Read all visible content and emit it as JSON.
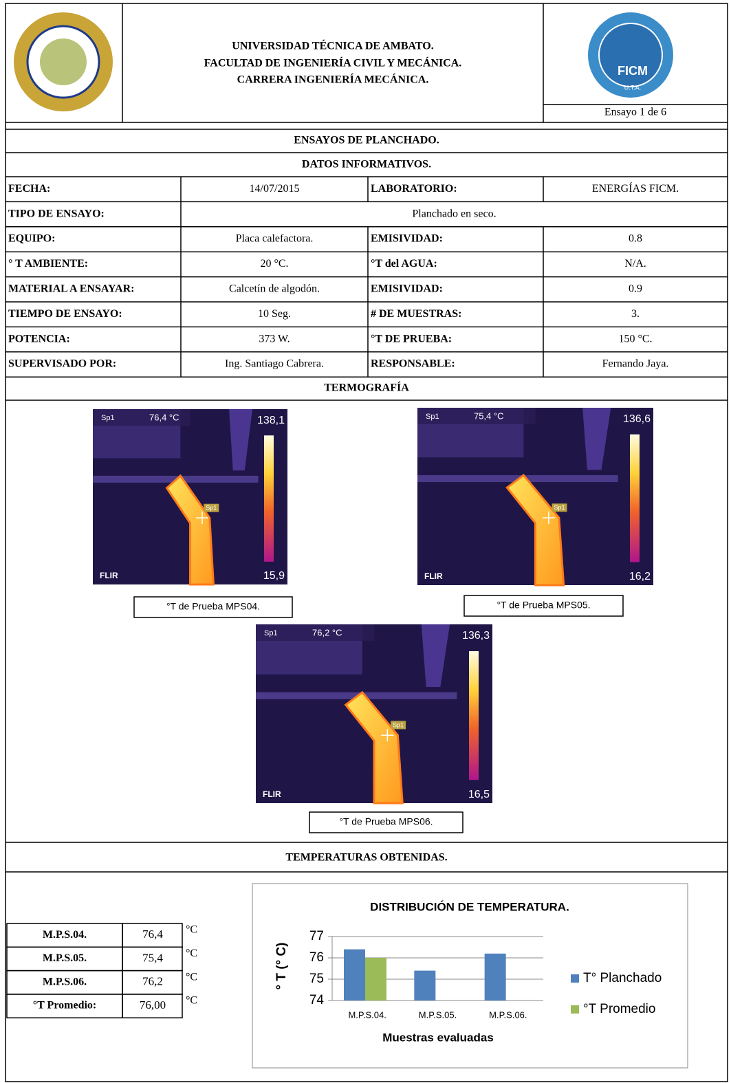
{
  "header": {
    "university": "UNIVERSIDAD TÉCNICA DE AMBATO.",
    "faculty": "FACULTAD DE INGENIERÍA CIVIL Y MECÁNICA.",
    "career": "CARRERA INGENIERÍA MECÁNICA.",
    "test_number": "Ensayo 1 de 6",
    "logo_right_text": "FICM",
    "logo_right_sub": "U.T.A."
  },
  "title": "ENSAYOS DE PLANCHADO.",
  "info_title": "DATOS INFORMATIVOS.",
  "info_rows": [
    [
      "FECHA:",
      "14/07/2015",
      "LABORATORIO:",
      "ENERGÍAS FICM."
    ],
    [
      "TIPO DE ENSAYO:",
      "Planchado en seco."
    ],
    [
      "EQUIPO:",
      "Placa calefactora.",
      "EMISIVIDAD:",
      "0.8"
    ],
    [
      "° T AMBIENTE:",
      "20 °C.",
      "°T del AGUA:",
      "N/A."
    ],
    [
      "MATERIAL A ENSAYAR:",
      "Calcetín de algodón.",
      "EMISIVIDAD:",
      "0.9"
    ],
    [
      "TIEMPO DE ENSAYO:",
      "10 Seg.",
      "# DE MUESTRAS:",
      "3."
    ],
    [
      "POTENCIA:",
      "373 W.",
      "°T DE PRUEBA:",
      "150 °C."
    ],
    [
      "SUPERVISADO POR:",
      "Ing.  Santiago Cabrera.",
      "RESPONSABLE:",
      "Fernando Jaya."
    ]
  ],
  "thermography": {
    "title": "TERMOGRAFÍA",
    "images": [
      {
        "spot": "Sp1",
        "reading": "76,4 °C",
        "max": "138,1",
        "min": "15,9",
        "brand": "FLIR",
        "caption": "°T de Prueba MPS04."
      },
      {
        "spot": "Sp1",
        "reading": "75,4 °C",
        "max": "136,6",
        "min": "16,2",
        "brand": "FLIR",
        "caption": "°T de Prueba MPS05."
      },
      {
        "spot": "Sp1",
        "reading": "76,2 °C",
        "max": "136,3",
        "min": "16,5",
        "brand": "FLIR",
        "caption": "°T de Prueba MPS06."
      }
    ]
  },
  "results": {
    "title": "TEMPERATURAS OBTENIDAS.",
    "rows": [
      {
        "label": "M.P.S.04.",
        "value": "76,4",
        "unit": "°C"
      },
      {
        "label": "M.P.S.05.",
        "value": "75,4",
        "unit": "°C"
      },
      {
        "label": "M.P.S.06.",
        "value": "76,2",
        "unit": "°C"
      },
      {
        "label": "°T Promedio:",
        "value": "76,00",
        "unit": "°C"
      }
    ]
  },
  "chart_data": {
    "type": "bar",
    "title": "DISTRIBUCIÓN  DE TEMPERATURA.",
    "x_label": "Muestras evaluadas",
    "y_label": "° T (° C)",
    "categories": [
      "M.P.S.04.",
      "M.P.S.05.",
      "M.P.S.06."
    ],
    "series": [
      {
        "name": "T° Planchado",
        "color": "#4f81bd",
        "values": [
          76.4,
          75.4,
          76.2
        ]
      },
      {
        "name": "°T Promedio",
        "color": "#9bbb59",
        "values": [
          76,
          null,
          null
        ]
      }
    ],
    "ylim": [
      74,
      77
    ],
    "yticks": [
      74,
      75,
      76,
      77
    ],
    "grid": true
  }
}
